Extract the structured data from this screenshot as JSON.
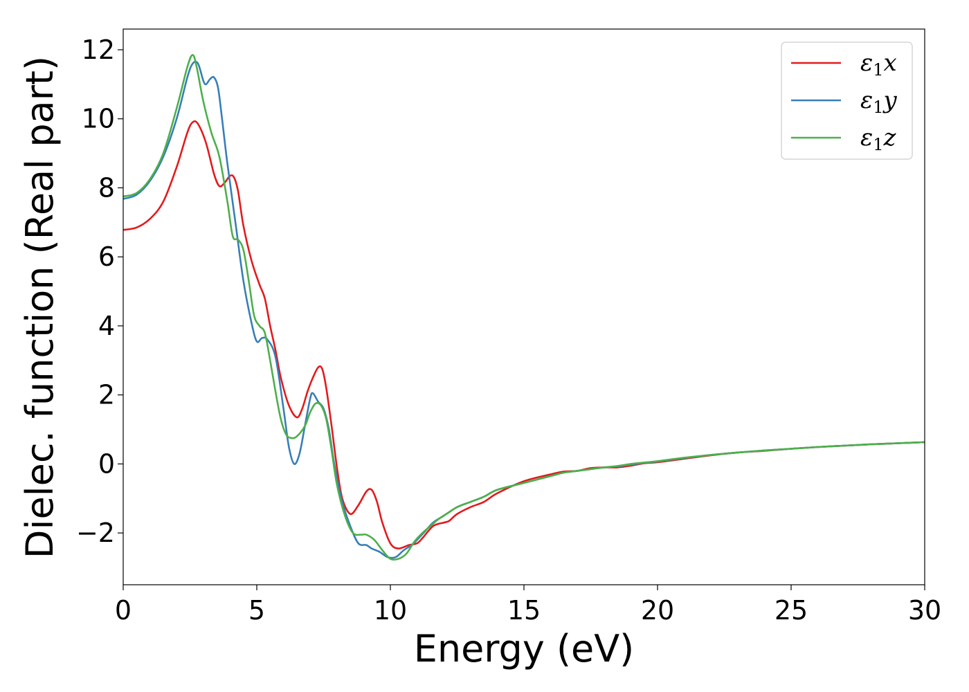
{
  "chart_data": {
    "type": "line",
    "xlabel": "Energy (eV)",
    "ylabel": "Dielec. function (Real part)",
    "xlim": [
      0,
      30
    ],
    "ylim": [
      -3.5,
      12.6
    ],
    "xticks": [
      0,
      5,
      10,
      15,
      20,
      25,
      30
    ],
    "yticks": [
      -2,
      0,
      2,
      4,
      6,
      8,
      10,
      12
    ],
    "grid": false,
    "legend_position": "top-right",
    "series": [
      {
        "name": "ε1x",
        "legend_base": "ε",
        "legend_sub": "1",
        "legend_suffix": "x",
        "color": "#e41a1c",
        "points": [
          [
            0,
            6.78
          ],
          [
            0.5,
            6.85
          ],
          [
            1.0,
            7.1
          ],
          [
            1.5,
            7.6
          ],
          [
            2.0,
            8.6
          ],
          [
            2.4,
            9.6
          ],
          [
            2.6,
            9.9
          ],
          [
            2.8,
            9.85
          ],
          [
            3.1,
            9.3
          ],
          [
            3.4,
            8.4
          ],
          [
            3.6,
            8.05
          ],
          [
            3.8,
            8.15
          ],
          [
            4.0,
            8.35
          ],
          [
            4.15,
            8.3
          ],
          [
            4.3,
            7.9
          ],
          [
            4.5,
            6.9
          ],
          [
            4.8,
            5.9
          ],
          [
            5.1,
            5.2
          ],
          [
            5.3,
            4.8
          ],
          [
            5.5,
            4.0
          ],
          [
            5.7,
            3.3
          ],
          [
            5.9,
            2.5
          ],
          [
            6.2,
            1.7
          ],
          [
            6.5,
            1.35
          ],
          [
            6.7,
            1.6
          ],
          [
            6.9,
            2.1
          ],
          [
            7.1,
            2.5
          ],
          [
            7.3,
            2.8
          ],
          [
            7.45,
            2.75
          ],
          [
            7.6,
            2.2
          ],
          [
            7.8,
            1.1
          ],
          [
            8.0,
            -0.1
          ],
          [
            8.2,
            -1.0
          ],
          [
            8.5,
            -1.45
          ],
          [
            8.8,
            -1.2
          ],
          [
            9.1,
            -0.8
          ],
          [
            9.3,
            -0.75
          ],
          [
            9.5,
            -1.1
          ],
          [
            9.7,
            -1.7
          ],
          [
            10.0,
            -2.3
          ],
          [
            10.3,
            -2.45
          ],
          [
            10.7,
            -2.35
          ],
          [
            11.0,
            -2.3
          ],
          [
            11.2,
            -2.15
          ],
          [
            11.6,
            -1.8
          ],
          [
            12.0,
            -1.7
          ],
          [
            12.2,
            -1.65
          ],
          [
            12.5,
            -1.45
          ],
          [
            13.0,
            -1.25
          ],
          [
            13.5,
            -1.1
          ],
          [
            14.0,
            -0.85
          ],
          [
            15.0,
            -0.5
          ],
          [
            16.0,
            -0.3
          ],
          [
            16.5,
            -0.22
          ],
          [
            17.0,
            -0.2
          ],
          [
            17.5,
            -0.12
          ],
          [
            18.0,
            -0.1
          ],
          [
            18.5,
            -0.1
          ],
          [
            19.0,
            -0.05
          ],
          [
            19.5,
            0.02
          ],
          [
            20.0,
            0.05
          ],
          [
            21.0,
            0.15
          ],
          [
            22.0,
            0.25
          ],
          [
            23.0,
            0.33
          ],
          [
            24.0,
            0.38
          ],
          [
            25.0,
            0.44
          ],
          [
            26.0,
            0.49
          ],
          [
            27.0,
            0.53
          ],
          [
            28.0,
            0.57
          ],
          [
            29.0,
            0.6
          ],
          [
            30.0,
            0.63
          ]
        ]
      },
      {
        "name": "ε1y",
        "legend_base": "ε",
        "legend_sub": "1",
        "legend_suffix": "y",
        "color": "#377eb8",
        "points": [
          [
            0,
            7.68
          ],
          [
            0.5,
            7.8
          ],
          [
            1.0,
            8.2
          ],
          [
            1.5,
            8.9
          ],
          [
            2.0,
            10.0
          ],
          [
            2.4,
            11.2
          ],
          [
            2.6,
            11.6
          ],
          [
            2.8,
            11.6
          ],
          [
            3.0,
            11.1
          ],
          [
            3.1,
            11.0
          ],
          [
            3.25,
            11.15
          ],
          [
            3.4,
            11.2
          ],
          [
            3.55,
            10.9
          ],
          [
            3.7,
            10.0
          ],
          [
            3.9,
            8.7
          ],
          [
            4.2,
            7.0
          ],
          [
            4.5,
            5.3
          ],
          [
            4.8,
            4.1
          ],
          [
            5.0,
            3.55
          ],
          [
            5.2,
            3.65
          ],
          [
            5.4,
            3.6
          ],
          [
            5.7,
            3.1
          ],
          [
            6.0,
            1.6
          ],
          [
            6.2,
            0.5
          ],
          [
            6.4,
            0.0
          ],
          [
            6.6,
            0.3
          ],
          [
            6.8,
            1.1
          ],
          [
            7.0,
            1.9
          ],
          [
            7.1,
            2.05
          ],
          [
            7.3,
            1.8
          ],
          [
            7.5,
            1.6
          ],
          [
            7.7,
            1.0
          ],
          [
            7.9,
            0.0
          ],
          [
            8.2,
            -1.1
          ],
          [
            8.5,
            -1.8
          ],
          [
            8.8,
            -2.3
          ],
          [
            9.1,
            -2.35
          ],
          [
            9.3,
            -2.45
          ],
          [
            9.6,
            -2.55
          ],
          [
            9.9,
            -2.7
          ],
          [
            10.2,
            -2.7
          ],
          [
            10.5,
            -2.5
          ],
          [
            10.8,
            -2.35
          ],
          [
            11.0,
            -2.2
          ],
          [
            11.3,
            -1.95
          ],
          [
            11.6,
            -1.7
          ],
          [
            12.0,
            -1.5
          ],
          [
            12.5,
            -1.25
          ],
          [
            13.0,
            -1.1
          ],
          [
            13.5,
            -0.95
          ],
          [
            14.0,
            -0.75
          ],
          [
            15.0,
            -0.55
          ],
          [
            16.0,
            -0.35
          ],
          [
            16.5,
            -0.25
          ],
          [
            17.0,
            -0.2
          ],
          [
            17.5,
            -0.15
          ],
          [
            18.0,
            -0.1
          ],
          [
            18.5,
            -0.07
          ],
          [
            19.0,
            -0.02
          ],
          [
            19.5,
            0.03
          ],
          [
            20.0,
            0.07
          ],
          [
            21.0,
            0.17
          ],
          [
            22.0,
            0.26
          ],
          [
            23.0,
            0.33
          ],
          [
            24.0,
            0.39
          ],
          [
            25.0,
            0.44
          ],
          [
            26.0,
            0.49
          ],
          [
            27.0,
            0.53
          ],
          [
            28.0,
            0.57
          ],
          [
            29.0,
            0.6
          ],
          [
            30.0,
            0.63
          ]
        ]
      },
      {
        "name": "ε1z",
        "legend_base": "ε",
        "legend_sub": "1",
        "legend_suffix": "z",
        "color": "#4daf4a",
        "points": [
          [
            0,
            7.75
          ],
          [
            0.5,
            7.85
          ],
          [
            1.0,
            8.25
          ],
          [
            1.5,
            9.0
          ],
          [
            2.0,
            10.3
          ],
          [
            2.4,
            11.5
          ],
          [
            2.6,
            11.85
          ],
          [
            2.75,
            11.5
          ],
          [
            3.0,
            10.5
          ],
          [
            3.3,
            9.6
          ],
          [
            3.6,
            8.9
          ],
          [
            3.9,
            7.6
          ],
          [
            4.1,
            6.6
          ],
          [
            4.3,
            6.5
          ],
          [
            4.5,
            6.2
          ],
          [
            4.7,
            5.3
          ],
          [
            4.9,
            4.3
          ],
          [
            5.1,
            4.0
          ],
          [
            5.3,
            3.8
          ],
          [
            5.5,
            3.0
          ],
          [
            5.7,
            2.1
          ],
          [
            5.9,
            1.3
          ],
          [
            6.1,
            0.85
          ],
          [
            6.3,
            0.75
          ],
          [
            6.5,
            0.8
          ],
          [
            6.8,
            1.1
          ],
          [
            7.0,
            1.5
          ],
          [
            7.2,
            1.75
          ],
          [
            7.4,
            1.7
          ],
          [
            7.6,
            1.3
          ],
          [
            7.8,
            0.4
          ],
          [
            8.0,
            -0.6
          ],
          [
            8.3,
            -1.5
          ],
          [
            8.6,
            -2.0
          ],
          [
            8.9,
            -2.05
          ],
          [
            9.1,
            -2.05
          ],
          [
            9.4,
            -2.2
          ],
          [
            9.7,
            -2.5
          ],
          [
            10.0,
            -2.75
          ],
          [
            10.3,
            -2.75
          ],
          [
            10.6,
            -2.6
          ],
          [
            10.9,
            -2.25
          ],
          [
            11.2,
            -2.0
          ],
          [
            11.5,
            -1.8
          ],
          [
            11.8,
            -1.6
          ],
          [
            12.2,
            -1.4
          ],
          [
            12.5,
            -1.25
          ],
          [
            13.0,
            -1.1
          ],
          [
            13.5,
            -0.95
          ],
          [
            14.0,
            -0.75
          ],
          [
            15.0,
            -0.55
          ],
          [
            16.0,
            -0.35
          ],
          [
            16.5,
            -0.25
          ],
          [
            17.0,
            -0.2
          ],
          [
            17.5,
            -0.15
          ],
          [
            18.0,
            -0.1
          ],
          [
            18.5,
            -0.06
          ],
          [
            19.0,
            0.0
          ],
          [
            19.5,
            0.04
          ],
          [
            20.0,
            0.08
          ],
          [
            21.0,
            0.18
          ],
          [
            22.0,
            0.26
          ],
          [
            23.0,
            0.33
          ],
          [
            24.0,
            0.39
          ],
          [
            25.0,
            0.44
          ],
          [
            26.0,
            0.49
          ],
          [
            27.0,
            0.53
          ],
          [
            28.0,
            0.57
          ],
          [
            29.0,
            0.6
          ],
          [
            30.0,
            0.63
          ]
        ]
      }
    ]
  }
}
